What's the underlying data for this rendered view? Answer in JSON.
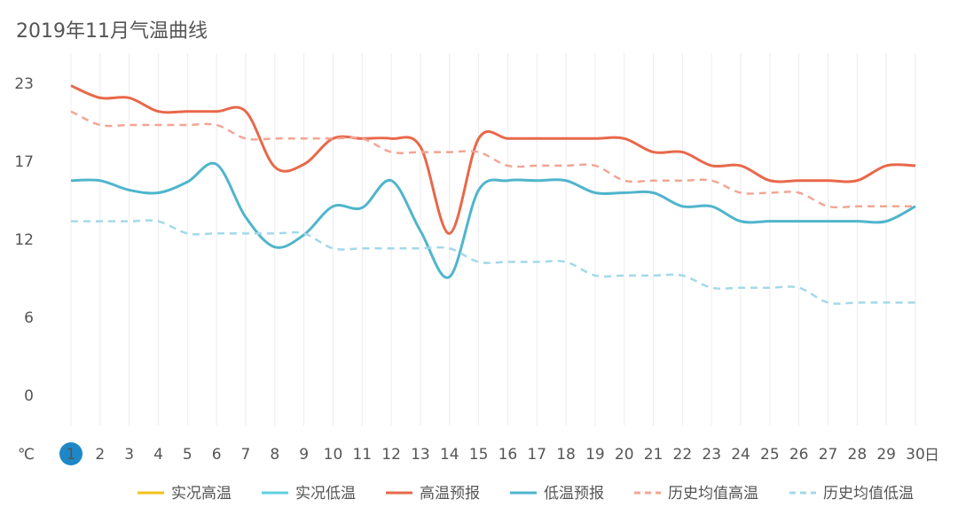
{
  "chart_data": {
    "type": "line",
    "title": "2019年11月气温曲线",
    "x_unit": "日",
    "y_unit": "℃",
    "categories": [
      "1",
      "2",
      "3",
      "4",
      "5",
      "6",
      "7",
      "8",
      "9",
      "10",
      "11",
      "12",
      "13",
      "14",
      "15",
      "16",
      "17",
      "18",
      "19",
      "20",
      "21",
      "22",
      "23",
      "24",
      "25",
      "26",
      "27",
      "28",
      "29",
      "30"
    ],
    "ylim": [
      0,
      25
    ],
    "yticks": [
      0,
      {
        "value": 5.75,
        "label": "6"
      },
      {
        "value": 11.5,
        "label": "12"
      },
      {
        "value": 17.25,
        "label": "17"
      },
      23
    ],
    "series": [
      {
        "name": "实况高温",
        "color": "#f2c318",
        "dashed": false,
        "values": [
          null,
          null,
          null,
          null,
          null,
          null,
          null,
          null,
          null,
          null,
          null,
          null,
          null,
          null,
          null,
          null,
          null,
          null,
          null,
          null,
          null,
          null,
          null,
          null,
          null,
          null,
          null,
          null,
          null,
          null
        ]
      },
      {
        "name": "实况低温",
        "color": "#5fd0e0",
        "dashed": false,
        "values": [
          null,
          null,
          null,
          null,
          null,
          null,
          null,
          null,
          null,
          null,
          null,
          null,
          null,
          null,
          null,
          null,
          null,
          null,
          null,
          null,
          null,
          null,
          null,
          null,
          null,
          null,
          null,
          null,
          null,
          null
        ]
      },
      {
        "name": "高温预报",
        "color": "#e8684a",
        "dashed": false,
        "values": [
          22.9,
          22.0,
          22.0,
          21.0,
          21.0,
          21.0,
          21.0,
          16.9,
          17.1,
          19.0,
          19.0,
          19.0,
          18.4,
          12.0,
          19.0,
          19.0,
          19.0,
          19.0,
          19.0,
          19.0,
          18.0,
          18.0,
          17.0,
          17.0,
          15.9,
          15.9,
          15.9,
          15.9,
          17.0,
          17.0
        ]
      },
      {
        "name": "低温预报",
        "color": "#4fb5cc",
        "dashed": false,
        "values": [
          15.9,
          15.9,
          15.2,
          15.0,
          15.8,
          17.1,
          13.2,
          11.0,
          11.9,
          14.0,
          13.9,
          15.9,
          12.2,
          8.8,
          15.2,
          15.9,
          15.9,
          15.9,
          15.0,
          15.0,
          15.0,
          14.0,
          14.0,
          12.9,
          12.9,
          12.9,
          12.9,
          12.9,
          12.9,
          14.0
        ]
      },
      {
        "name": "历史均值高温",
        "color": "#f2a594",
        "dashed": true,
        "values": [
          21.0,
          20.0,
          20.0,
          20.0,
          20.0,
          20.0,
          19.0,
          19.0,
          19.0,
          19.0,
          19.0,
          18.0,
          18.0,
          18.0,
          18.0,
          17.0,
          17.0,
          17.0,
          17.0,
          15.9,
          15.9,
          15.9,
          15.9,
          15.0,
          15.0,
          15.0,
          14.0,
          14.0,
          14.0,
          14.0
        ]
      },
      {
        "name": "历史均值低温",
        "color": "#a3d9e8",
        "dashed": true,
        "values": [
          12.9,
          12.9,
          12.9,
          12.9,
          12.0,
          12.0,
          12.0,
          12.0,
          12.0,
          10.9,
          10.9,
          10.9,
          10.9,
          10.9,
          9.9,
          9.9,
          9.9,
          9.9,
          8.9,
          8.9,
          8.9,
          8.9,
          8.0,
          8.0,
          8.0,
          8.0,
          6.9,
          6.9,
          6.9,
          6.9
        ]
      }
    ]
  }
}
